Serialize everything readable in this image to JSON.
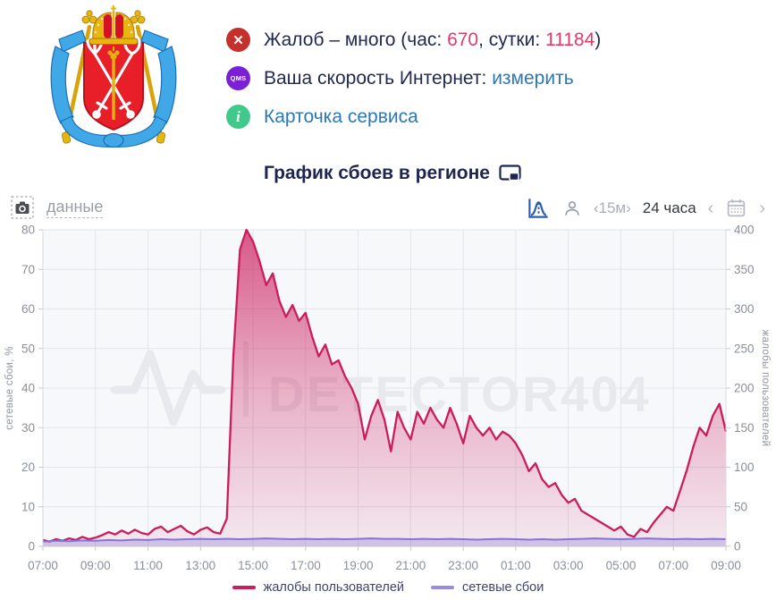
{
  "colors": {
    "dark_text": "#222a52",
    "link": "#2b77b8",
    "accent_number": "#e23a6a",
    "error_icon_bg": "#c4302b",
    "qms_icon_bg": "#7c1fd9",
    "info_icon_bg": "#41c98c",
    "watermark": "#e7e9ed",
    "plot_bg": "#f7f8fa",
    "grid": "#e2e4e9"
  },
  "icons": {
    "badge_error": "x-circle-icon",
    "badge_qms": "qms-badge-icon",
    "badge_info": "info-circle-icon",
    "title_icon": "external-display-icon",
    "toolbar_left": [
      "camera-icon"
    ],
    "toolbar_right": [
      "distribution-chart-icon",
      "person-icon",
      "calendar-icon"
    ]
  },
  "status": {
    "complaints": {
      "prefix": "Жалоб – много (час: ",
      "hour": "670",
      "mid": ", сутки: ",
      "day": "11184",
      "suffix": ")",
      "badge_glyph": "✕"
    },
    "speed": {
      "label": "Ваша скорость Интернет: ",
      "link": "измерить",
      "badge": "QMS"
    },
    "service": {
      "link": "Карточка сервиса",
      "badge_glyph": "i"
    }
  },
  "title": {
    "text": "График сбоев в регионе"
  },
  "toolbar": {
    "data_label": "данные",
    "interval": "‹15м›",
    "range": "24 часа",
    "prev": "‹",
    "next": "›"
  },
  "chart_data": {
    "type": "area",
    "title": "График сбоев в регионе",
    "watermark": "DETECTOR404",
    "grid": true,
    "legend_position": "bottom",
    "x_tick_labels": [
      "07:00",
      "09:00",
      "11:00",
      "13:00",
      "15:00",
      "17:00",
      "19:00",
      "21:00",
      "23:00",
      "01:00",
      "03:00",
      "05:00",
      "07:00",
      "09:00"
    ],
    "left_axis": {
      "label": "сетевые сбои, %",
      "min": 0,
      "max": 80,
      "step": 10
    },
    "right_axis": {
      "label": "жалобы пользователей",
      "min": 0,
      "max": 400,
      "step": 50
    },
    "series": [
      {
        "name": "жалобы пользователей",
        "axis": "right",
        "color": "#cb1c5b",
        "step_minutes": 15,
        "values": [
          8,
          6,
          9,
          7,
          10,
          8,
          12,
          9,
          11,
          14,
          18,
          15,
          20,
          16,
          21,
          17,
          15,
          22,
          25,
          18,
          22,
          26,
          19,
          15,
          21,
          24,
          18,
          16,
          35,
          240,
          375,
          400,
          385,
          360,
          330,
          345,
          310,
          290,
          305,
          285,
          295,
          265,
          240,
          255,
          230,
          235,
          215,
          200,
          180,
          135,
          165,
          185,
          160,
          120,
          170,
          150,
          135,
          170,
          155,
          175,
          160,
          150,
          175,
          155,
          130,
          165,
          150,
          140,
          150,
          135,
          145,
          140,
          130,
          115,
          95,
          105,
          85,
          75,
          80,
          65,
          55,
          60,
          45,
          40,
          35,
          30,
          25,
          20,
          25,
          15,
          12,
          22,
          18,
          30,
          40,
          50,
          45,
          70,
          95,
          125,
          150,
          140,
          165,
          180,
          145
        ]
      },
      {
        "name": "сетевые сбои",
        "axis": "left",
        "color": "#8673d8",
        "step_minutes": 30,
        "values": [
          1.2,
          1.4,
          1.3,
          1.5,
          1.4,
          1.6,
          1.5,
          1.7,
          1.6,
          1.8,
          1.7,
          1.8,
          1.9,
          1.8,
          1.9,
          1.8,
          1.9,
          2.0,
          1.9,
          1.8,
          1.9,
          1.8,
          1.9,
          1.8,
          1.9,
          2.0,
          1.9,
          1.9,
          1.8,
          1.9,
          1.8,
          1.9,
          1.8,
          1.7,
          1.8,
          1.9,
          1.8,
          1.7,
          1.8,
          1.7,
          1.8,
          1.9,
          2.0,
          1.9,
          1.8,
          1.9,
          2.0,
          1.9,
          1.8,
          1.9,
          1.8,
          1.9,
          1.8
        ]
      }
    ]
  }
}
